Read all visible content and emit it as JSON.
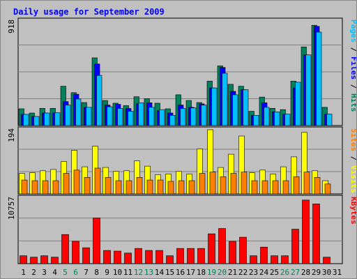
{
  "title": "Daily usage for September 2009",
  "colors": {
    "hits": "#00805c",
    "files": "#0000ff",
    "pages": "#00c0ff",
    "visits": "#ffff00",
    "sites": "#ff8000",
    "kbytes": "#ff0000",
    "weekend": "#00805c",
    "weekday": "#000000",
    "title": "#0000ff",
    "grid": "#808080",
    "panel": "#c0c0c0"
  },
  "legends": {
    "top": [
      {
        "text": "Pages",
        "color": "#00c0ff"
      },
      {
        "text": " / ",
        "color": "#000000"
      },
      {
        "text": "Files",
        "color": "#0000ff"
      },
      {
        "text": " / ",
        "color": "#000000"
      },
      {
        "text": "Hits",
        "color": "#00805c"
      }
    ],
    "middle": [
      {
        "text": "Sites",
        "color": "#ff8000"
      },
      {
        "text": " / ",
        "color": "#000000"
      },
      {
        "text": "Visits",
        "color": "#ffff00"
      }
    ],
    "bottom": [
      {
        "text": "KBytes",
        "color": "#ff0000"
      }
    ]
  },
  "chart_data": [
    {
      "type": "bar",
      "title": "Daily usage for September 2009",
      "panel": "hits-files-pages",
      "ymax_label": "918",
      "ylim": [
        0,
        918
      ],
      "categories": [
        "1",
        "2",
        "3",
        "4",
        "5",
        "6",
        "7",
        "8",
        "9",
        "10",
        "11",
        "12",
        "13",
        "14",
        "15",
        "16",
        "17",
        "18",
        "19",
        "20",
        "21",
        "22",
        "23",
        "24",
        "25",
        "26",
        "27",
        "28",
        "29",
        "30",
        "31"
      ],
      "series": [
        {
          "name": "Hits",
          "values": [
            147,
            110,
            151,
            151,
            345,
            289,
            202,
            594,
            220,
            196,
            175,
            253,
            236,
            196,
            147,
            270,
            220,
            202,
            390,
            524,
            362,
            345,
            125,
            250,
            151,
            140,
            390,
            690,
            880,
            160,
            0
          ]
        },
        {
          "name": "Files",
          "values": [
            98,
            80,
            110,
            112,
            210,
            275,
            160,
            540,
            180,
            186,
            150,
            190,
            200,
            130,
            110,
            180,
            160,
            190,
            330,
            510,
            300,
            315,
            90,
            200,
            120,
            100,
            330,
            620,
            870,
            100,
            0
          ]
        },
        {
          "name": "Pages",
          "values": [
            98,
            80,
            110,
            112,
            180,
            233,
            160,
            440,
            165,
            150,
            125,
            200,
            160,
            140,
            90,
            150,
            155,
            180,
            330,
            459,
            270,
            315,
            90,
            160,
            120,
            100,
            380,
            620,
            820,
            100,
            0
          ]
        }
      ],
      "weekend_days": [
        5,
        6,
        12,
        13,
        19,
        20,
        26,
        27
      ]
    },
    {
      "type": "bar",
      "panel": "visits-sites",
      "ymax_label": "194",
      "ylim": [
        0,
        194
      ],
      "categories": [
        "1",
        "2",
        "3",
        "4",
        "5",
        "6",
        "7",
        "8",
        "9",
        "10",
        "11",
        "12",
        "13",
        "14",
        "15",
        "16",
        "17",
        "18",
        "19",
        "20",
        "21",
        "22",
        "23",
        "24",
        "25",
        "26",
        "27",
        "28",
        "29",
        "30",
        "31"
      ],
      "series": [
        {
          "name": "Visits",
          "values": [
            62,
            64,
            70,
            74,
            98,
            132,
            82,
            144,
            80,
            68,
            70,
            100,
            84,
            58,
            60,
            68,
            60,
            136,
            194,
            80,
            120,
            175,
            64,
            72,
            60,
            82,
            112,
            186,
            70,
            40,
            0
          ]
        },
        {
          "name": "Sites",
          "values": [
            42,
            40,
            40,
            40,
            62,
            72,
            50,
            78,
            50,
            40,
            40,
            50,
            42,
            42,
            38,
            40,
            40,
            62,
            66,
            52,
            62,
            66,
            40,
            40,
            40,
            40,
            52,
            66,
            50,
            30,
            0
          ]
        }
      ]
    },
    {
      "type": "bar",
      "panel": "kbytes",
      "ymax_label": "10757",
      "ylim": [
        0,
        10757
      ],
      "categories": [
        "1",
        "2",
        "3",
        "4",
        "5",
        "6",
        "7",
        "8",
        "9",
        "10",
        "11",
        "12",
        "13",
        "14",
        "15",
        "16",
        "17",
        "18",
        "19",
        "20",
        "21",
        "22",
        "23",
        "24",
        "25",
        "26",
        "27",
        "28",
        "29",
        "30",
        "31"
      ],
      "series": [
        {
          "name": "KBytes",
          "values": [
            1300,
            1070,
            1300,
            1070,
            4780,
            3660,
            2610,
            7500,
            2170,
            2060,
            1740,
            2500,
            2170,
            2170,
            1300,
            2500,
            2500,
            2500,
            4900,
            5770,
            3660,
            4340,
            1300,
            2720,
            1300,
            1300,
            5660,
            10440,
            9800,
            1070,
            0
          ]
        }
      ]
    }
  ]
}
